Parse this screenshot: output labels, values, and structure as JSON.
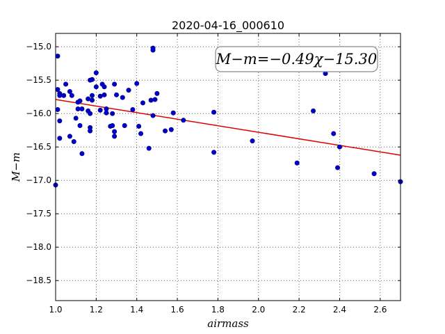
{
  "chart_data": {
    "type": "scatter",
    "title": "2020-04-16_000610",
    "xlabel": "airmass",
    "ylabel": "M−m",
    "xlim": [
      1.0,
      2.7
    ],
    "ylim": [
      -18.8,
      -14.8
    ],
    "y_inverted": true,
    "grid": true,
    "x_ticks": [
      1.0,
      1.2,
      1.4,
      1.6,
      1.8,
      2.0,
      2.2,
      2.4,
      2.6
    ],
    "x_tick_labels": [
      "1.0",
      "1.2",
      "1.4",
      "1.6",
      "1.8",
      "2.0",
      "2.2",
      "2.4",
      "2.6"
    ],
    "y_ticks": [
      -15.0,
      -15.5,
      -16.0,
      -16.5,
      -17.0,
      -17.5,
      -18.0,
      -18.5
    ],
    "y_tick_labels": [
      "−15.0",
      "−15.5",
      "−16.0",
      "−16.5",
      "−17.0",
      "−17.5",
      "−18.0",
      "−18.5"
    ],
    "annotation": "M−m=−0.49χ−15.30",
    "series": [
      {
        "type": "scatter",
        "color": "#0000cc",
        "points": [
          [
            1.0,
            -17.07
          ],
          [
            1.01,
            -15.14
          ],
          [
            1.01,
            -15.64
          ],
          [
            1.01,
            -15.94
          ],
          [
            1.02,
            -15.7
          ],
          [
            1.02,
            -15.73
          ],
          [
            1.02,
            -16.11
          ],
          [
            1.02,
            -16.37
          ],
          [
            1.04,
            -15.73
          ],
          [
            1.05,
            -15.56
          ],
          [
            1.07,
            -16.34
          ],
          [
            1.07,
            -15.67
          ],
          [
            1.08,
            -15.73
          ],
          [
            1.09,
            -16.42
          ],
          [
            1.1,
            -16.07
          ],
          [
            1.11,
            -15.93
          ],
          [
            1.11,
            -15.83
          ],
          [
            1.12,
            -16.18
          ],
          [
            1.12,
            -15.81
          ],
          [
            1.13,
            -16.6
          ],
          [
            1.13,
            -15.93
          ],
          [
            1.16,
            -15.78
          ],
          [
            1.16,
            -15.96
          ],
          [
            1.17,
            -16.0
          ],
          [
            1.17,
            -15.5
          ],
          [
            1.17,
            -16.21
          ],
          [
            1.17,
            -16.26
          ],
          [
            1.18,
            -15.73
          ],
          [
            1.18,
            -15.49
          ],
          [
            1.18,
            -15.8
          ],
          [
            1.2,
            -15.39
          ],
          [
            1.2,
            -15.6
          ],
          [
            1.22,
            -15.95
          ],
          [
            1.22,
            -15.74
          ],
          [
            1.23,
            -15.56
          ],
          [
            1.24,
            -15.6
          ],
          [
            1.24,
            -15.72
          ],
          [
            1.25,
            -15.99
          ],
          [
            1.25,
            -15.93
          ],
          [
            1.27,
            -16.19
          ],
          [
            1.28,
            -16.0
          ],
          [
            1.28,
            -16.18
          ],
          [
            1.29,
            -16.34
          ],
          [
            1.29,
            -16.27
          ],
          [
            1.29,
            -15.56
          ],
          [
            1.3,
            -15.72
          ],
          [
            1.33,
            -15.76
          ],
          [
            1.34,
            -16.18
          ],
          [
            1.36,
            -15.65
          ],
          [
            1.38,
            -15.94
          ],
          [
            1.4,
            -15.55
          ],
          [
            1.41,
            -16.19
          ],
          [
            1.42,
            -16.3
          ],
          [
            1.43,
            -15.84
          ],
          [
            1.46,
            -16.52
          ],
          [
            1.47,
            -15.8
          ],
          [
            1.48,
            -15.02
          ],
          [
            1.48,
            -15.05
          ],
          [
            1.48,
            -16.03
          ],
          [
            1.49,
            -15.79
          ],
          [
            1.5,
            -15.7
          ],
          [
            1.54,
            -16.26
          ],
          [
            1.57,
            -16.24
          ],
          [
            1.58,
            -15.99
          ],
          [
            1.63,
            -16.1
          ],
          [
            1.78,
            -15.98
          ],
          [
            1.78,
            -16.58
          ],
          [
            1.97,
            -16.41
          ],
          [
            2.19,
            -16.74
          ],
          [
            2.27,
            -15.96
          ],
          [
            2.33,
            -15.4
          ],
          [
            2.37,
            -16.3
          ],
          [
            2.39,
            -16.81
          ],
          [
            2.4,
            -16.5
          ],
          [
            2.57,
            -16.9
          ],
          [
            2.7,
            -17.02
          ]
        ]
      },
      {
        "type": "line",
        "color": "#dd0000",
        "slope": -0.49,
        "intercept": -15.3
      }
    ]
  }
}
